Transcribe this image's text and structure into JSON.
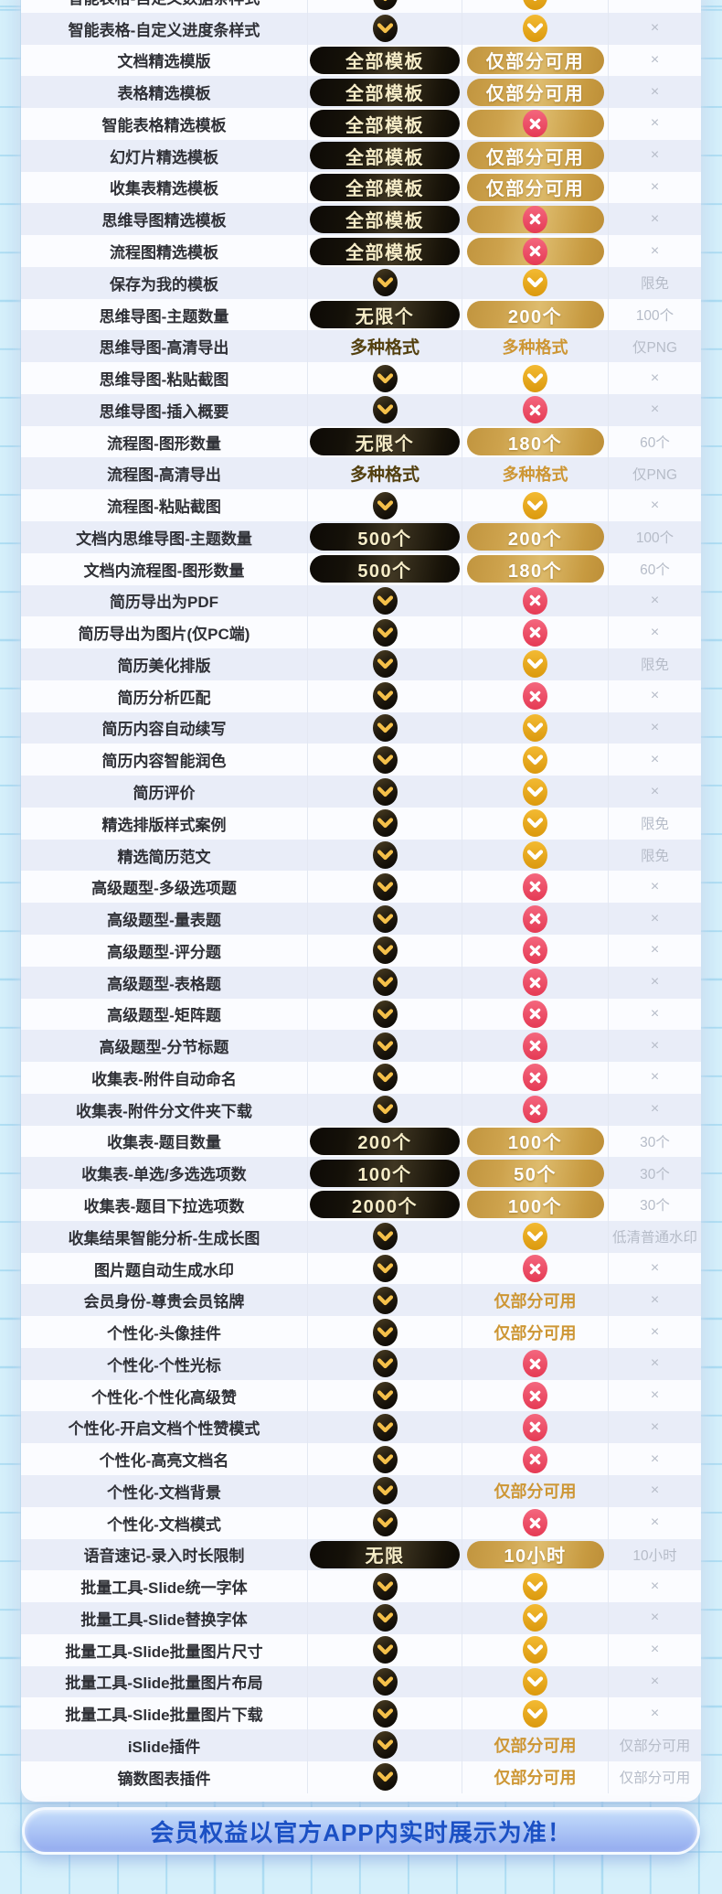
{
  "table": {
    "columns": [
      "feature",
      "premium-tier",
      "standard-tier",
      "free-tier"
    ],
    "cell_codes": {
      "B": "black-check",
      "G": "gold-check",
      "X": "red-x",
      "PX": "gold-pill-with-red-x",
      "PB|": "black-pill-with-label",
      "PG|": "gold-pill-with-label",
      "TD|": "dark-gold-text",
      "TG|": "gold-text"
    },
    "rows": [
      [
        "智能表格-自定义数据条样式",
        "B",
        "G",
        "×"
      ],
      [
        "智能表格-自定义进度条样式",
        "B",
        "G",
        "×"
      ],
      [
        "文档精选模版",
        "PB|全部模板",
        "PG|仅部分可用",
        "×"
      ],
      [
        "表格精选模板",
        "PB|全部模板",
        "PG|仅部分可用",
        "×"
      ],
      [
        "智能表格精选模板",
        "PB|全部模板",
        "PX",
        "×"
      ],
      [
        "幻灯片精选模板",
        "PB|全部模板",
        "PG|仅部分可用",
        "×"
      ],
      [
        "收集表精选模板",
        "PB|全部模板",
        "PG|仅部分可用",
        "×"
      ],
      [
        "思维导图精选模板",
        "PB|全部模板",
        "PX",
        "×"
      ],
      [
        "流程图精选模板",
        "PB|全部模板",
        "PX",
        "×"
      ],
      [
        "保存为我的模板",
        "B",
        "G",
        "限免"
      ],
      [
        "思维导图-主题数量",
        "PB|无限个",
        "PG|200个",
        "100个"
      ],
      [
        "思维导图-高清导出",
        "TD|多种格式",
        "TG|多种格式",
        "仅PNG"
      ],
      [
        "思维导图-粘贴截图",
        "B",
        "G",
        "×"
      ],
      [
        "思维导图-插入概要",
        "B",
        "X",
        "×"
      ],
      [
        "流程图-图形数量",
        "PB|无限个",
        "PG|180个",
        "60个"
      ],
      [
        "流程图-高清导出",
        "TD|多种格式",
        "TG|多种格式",
        "仅PNG"
      ],
      [
        "流程图-粘贴截图",
        "B",
        "G",
        "×"
      ],
      [
        "文档内思维导图-主题数量",
        "PB|500个",
        "PG|200个",
        "100个"
      ],
      [
        "文档内流程图-图形数量",
        "PB|500个",
        "PG|180个",
        "60个"
      ],
      [
        "简历导出为PDF",
        "B",
        "X",
        "×"
      ],
      [
        "简历导出为图片(仅PC端)",
        "B",
        "X",
        "×"
      ],
      [
        "简历美化排版",
        "B",
        "G",
        "限免"
      ],
      [
        "简历分析匹配",
        "B",
        "X",
        "×"
      ],
      [
        "简历内容自动续写",
        "B",
        "G",
        "×"
      ],
      [
        "简历内容智能润色",
        "B",
        "G",
        "×"
      ],
      [
        "简历评价",
        "B",
        "G",
        "×"
      ],
      [
        "精选排版样式案例",
        "B",
        "G",
        "限免"
      ],
      [
        "精选简历范文",
        "B",
        "G",
        "限免"
      ],
      [
        "高级题型-多级选项题",
        "B",
        "X",
        "×"
      ],
      [
        "高级题型-量表题",
        "B",
        "X",
        "×"
      ],
      [
        "高级题型-评分题",
        "B",
        "X",
        "×"
      ],
      [
        "高级题型-表格题",
        "B",
        "X",
        "×"
      ],
      [
        "高级题型-矩阵题",
        "B",
        "X",
        "×"
      ],
      [
        "高级题型-分节标题",
        "B",
        "X",
        "×"
      ],
      [
        "收集表-附件自动命名",
        "B",
        "X",
        "×"
      ],
      [
        "收集表-附件分文件夹下载",
        "B",
        "X",
        "×"
      ],
      [
        "收集表-题目数量",
        "PB|200个",
        "PG|100个",
        "30个"
      ],
      [
        "收集表-单选/多选选项数",
        "PB|100个",
        "PG|50个",
        "30个"
      ],
      [
        "收集表-题目下拉选项数",
        "PB|2000个",
        "PG|100个",
        "30个"
      ],
      [
        "收集结果智能分析-生成长图",
        "B",
        "G",
        "低清普通水印"
      ],
      [
        "图片题自动生成水印",
        "B",
        "X",
        "×"
      ],
      [
        "会员身份-尊贵会员铭牌",
        "B",
        "TG|仅部分可用",
        "×"
      ],
      [
        "个性化-头像挂件",
        "B",
        "TG|仅部分可用",
        "×"
      ],
      [
        "个性化-个性光标",
        "B",
        "X",
        "×"
      ],
      [
        "个性化-个性化高级赞",
        "B",
        "X",
        "×"
      ],
      [
        "个性化-开启文档个性赞模式",
        "B",
        "X",
        "×"
      ],
      [
        "个性化-高亮文档名",
        "B",
        "X",
        "×"
      ],
      [
        "个性化-文档背景",
        "B",
        "TG|仅部分可用",
        "×"
      ],
      [
        "个性化-文档模式",
        "B",
        "X",
        "×"
      ],
      [
        "语音速记-录入时长限制",
        "PB|无限",
        "PG|10小时",
        "10小时"
      ],
      [
        "批量工具-Slide统一字体",
        "B",
        "G",
        "×"
      ],
      [
        "批量工具-Slide替换字体",
        "B",
        "G",
        "×"
      ],
      [
        "批量工具-Slide批量图片尺寸",
        "B",
        "G",
        "×"
      ],
      [
        "批量工具-Slide批量图片布局",
        "B",
        "G",
        "×"
      ],
      [
        "批量工具-Slide批量图片下载",
        "B",
        "G",
        "×"
      ],
      [
        "iSlide插件",
        "B",
        "TG|仅部分可用",
        "仅部分可用"
      ],
      [
        "镝数图表插件",
        "B",
        "TG|仅部分可用",
        "仅部分可用"
      ]
    ]
  },
  "footer": {
    "note": "会员权益以官方APP内实时展示为准！"
  },
  "colors": {
    "page_background": "#d6f0fb",
    "grid_line": "#8ccEec",
    "row_alt": "#e9edf8",
    "row_base": "#fbfcff",
    "black_pill": "#1a140b",
    "black_pill_text": "#f7edc8",
    "gold_pill": "#cda24c",
    "gold_check": "#e8a81e",
    "red_x": "#e84460",
    "gold_text": "#cd9634",
    "free_text_gray": "#b6bcc8",
    "banner_blue": "#a9c3f5",
    "banner_text": "#1b50c4"
  }
}
